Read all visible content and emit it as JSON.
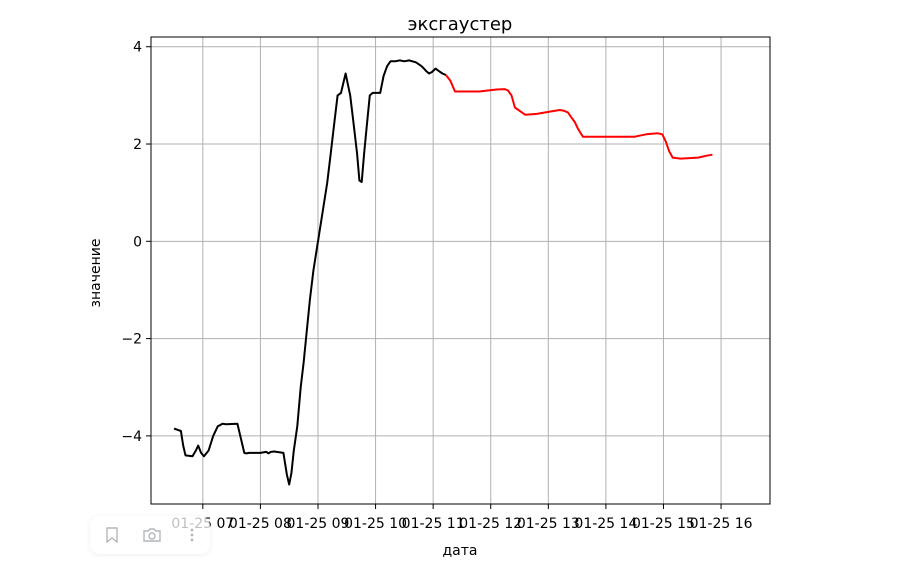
{
  "chart_data": {
    "type": "line",
    "title": "эксгаустер",
    "xlabel": "дата",
    "ylabel": "значение",
    "ylim": [
      -5.4,
      4.2
    ],
    "xlim": [
      0.1,
      10.85
    ],
    "grid": true,
    "y_ticks": [
      -4,
      -2,
      0,
      2,
      4
    ],
    "y_tick_labels": [
      "−4",
      "−2",
      "0",
      "2",
      "4"
    ],
    "x_ticks": [
      1,
      2,
      3,
      4,
      5,
      6,
      7,
      8,
      9,
      10
    ],
    "x_tick_labels": [
      "01-25 07",
      "01-25 08",
      "01-25 09",
      "01-25 10",
      "01-25 11",
      "01-25 12",
      "01-25 13",
      "01-25 14",
      "01-25 15",
      "01-25 16"
    ],
    "series": [
      {
        "color": "#000000",
        "x": [
          0.5,
          0.62,
          0.66,
          0.7,
          0.82,
          0.88,
          0.92,
          0.97,
          1.02,
          1.1,
          1.18,
          1.26,
          1.3,
          1.34,
          1.4,
          1.6,
          1.72,
          1.76,
          1.8,
          2.0,
          2.1,
          2.14,
          2.18,
          2.24,
          2.4,
          2.46,
          2.5,
          2.54,
          2.58,
          2.64,
          2.7,
          2.75,
          2.8,
          2.86,
          2.92,
          3.0,
          3.08,
          3.16,
          3.22,
          3.28,
          3.34,
          3.4,
          3.48,
          3.56,
          3.62,
          3.68,
          3.72,
          3.76,
          3.8,
          3.85,
          3.9,
          3.95,
          4.02,
          4.08,
          4.14,
          4.2,
          4.26,
          4.34,
          4.42,
          4.5,
          4.58,
          4.7,
          4.8,
          4.84,
          4.88,
          4.93,
          4.98,
          5.04,
          5.1,
          5.16,
          5.22
        ],
        "y": [
          -3.85,
          -3.9,
          -4.2,
          -4.4,
          -4.42,
          -4.3,
          -4.2,
          -4.35,
          -4.42,
          -4.3,
          -4.0,
          -3.8,
          -3.78,
          -3.75,
          -3.76,
          -3.75,
          -4.35,
          -4.36,
          -4.35,
          -4.35,
          -4.33,
          -4.36,
          -4.33,
          -4.32,
          -4.35,
          -4.8,
          -5.0,
          -4.75,
          -4.3,
          -3.8,
          -3.0,
          -2.5,
          -1.9,
          -1.2,
          -0.6,
          0.0,
          0.6,
          1.2,
          1.8,
          2.4,
          3.0,
          3.05,
          3.45,
          3.0,
          2.4,
          1.8,
          1.25,
          1.22,
          1.8,
          2.4,
          3.0,
          3.05,
          3.05,
          3.05,
          3.4,
          3.6,
          3.7,
          3.7,
          3.72,
          3.7,
          3.72,
          3.68,
          3.6,
          3.55,
          3.5,
          3.45,
          3.48,
          3.55,
          3.5,
          3.45,
          3.42
        ]
      },
      {
        "color": "#ff0000",
        "x": [
          5.22,
          5.3,
          5.38,
          5.5,
          5.8,
          6.1,
          6.24,
          6.3,
          6.36,
          6.42,
          6.6,
          6.8,
          7.0,
          7.2,
          7.28,
          7.34,
          7.4,
          7.46,
          7.52,
          7.6,
          7.8,
          8.1,
          8.5,
          8.7,
          8.9,
          8.98,
          9.04,
          9.1,
          9.16,
          9.3,
          9.6,
          9.75,
          9.85
        ],
        "y": [
          3.42,
          3.3,
          3.08,
          3.08,
          3.08,
          3.12,
          3.13,
          3.1,
          3.0,
          2.75,
          2.6,
          2.62,
          2.66,
          2.7,
          2.68,
          2.65,
          2.55,
          2.45,
          2.3,
          2.15,
          2.15,
          2.15,
          2.15,
          2.2,
          2.22,
          2.2,
          2.05,
          1.85,
          1.72,
          1.7,
          1.72,
          1.76,
          1.78
        ]
      }
    ]
  },
  "toolbar": {
    "bookmark_icon": "bookmark-icon",
    "camera_icon": "camera-icon",
    "more_icon": "more-vertical-icon"
  }
}
